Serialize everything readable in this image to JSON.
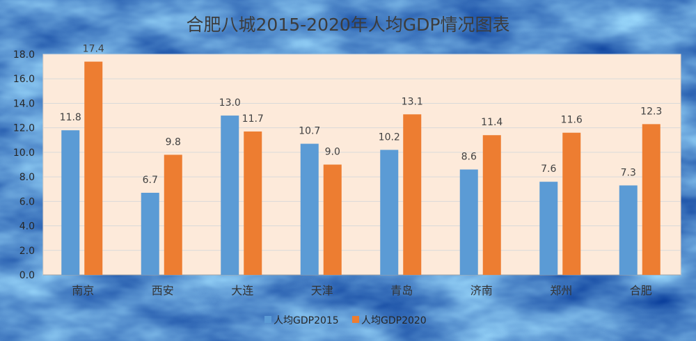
{
  "chart_data": {
    "type": "bar",
    "title": "合肥八城2015-2020年人均GDP情况图表",
    "categories": [
      "南京",
      "西安",
      "大连",
      "天津",
      "青岛",
      "济南",
      "郑州",
      "合肥"
    ],
    "series": [
      {
        "name": "人均GDP2015",
        "values": [
          11.8,
          6.7,
          13.0,
          10.7,
          10.2,
          8.6,
          7.6,
          7.3
        ],
        "color": "#5B9BD5"
      },
      {
        "name": "人均GDP2020",
        "values": [
          17.4,
          9.8,
          11.7,
          9.0,
          13.1,
          11.4,
          11.6,
          12.3
        ],
        "color": "#ED7D31"
      }
    ],
    "ylim": [
      0,
      18
    ],
    "yticks": [
      0,
      2,
      4,
      6,
      8,
      10,
      12,
      14,
      16,
      18
    ],
    "grid": true,
    "legend": "bottom",
    "data_labels": true,
    "plot_background": "#FDEADA",
    "background": "#5A8CCB"
  }
}
